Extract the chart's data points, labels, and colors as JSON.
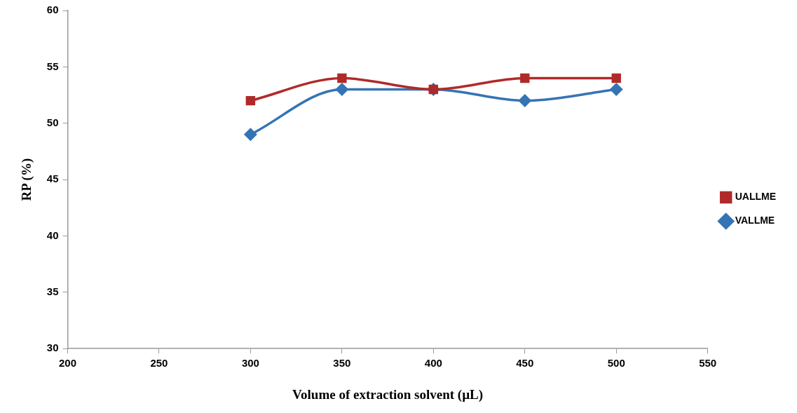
{
  "chart_data": {
    "type": "line",
    "xlabel": "Volume of extraction solvent (µL)",
    "ylabel": "RP (%)",
    "x": [
      300,
      350,
      400,
      450,
      500
    ],
    "series": [
      {
        "name": "VALLME",
        "color": "#3474b4",
        "marker": "diamond",
        "values": [
          49,
          53,
          53,
          52,
          53
        ]
      },
      {
        "name": "UALLME",
        "color": "#b02a2a",
        "marker": "square",
        "values": [
          52,
          54,
          53,
          54,
          54
        ]
      }
    ],
    "xlim": [
      200,
      550
    ],
    "xticks": [
      200,
      250,
      300,
      350,
      400,
      450,
      500,
      550
    ],
    "ylim": [
      30,
      60
    ],
    "yticks": [
      30,
      35,
      40,
      45,
      50,
      55,
      60
    ],
    "grid": false,
    "legend": "right",
    "line_style": "solid"
  }
}
